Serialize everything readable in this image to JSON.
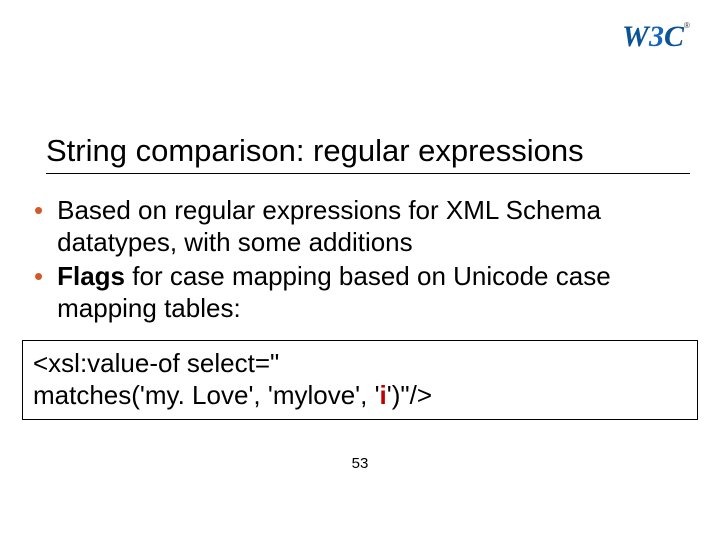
{
  "logo": {
    "text_main": "W3C",
    "color_w": "#0b5394",
    "color_3": "#0b5394",
    "color_c": "#0b5394",
    "reg_mark": "®"
  },
  "title": "String comparison: regular expressions",
  "bullets": [
    {
      "prefix": "",
      "bold": "",
      "text": "Based on regular expressions for XML Schema datatypes, with some additions"
    },
    {
      "prefix": "",
      "bold": "Flags",
      "text": " for case mapping based on Unicode case mapping tables:"
    }
  ],
  "code": {
    "line1": "<xsl:value-of select=\"",
    "line2_a": "matches('my. Love', 'mylove', '",
    "line2_hl": "i",
    "line2_b": "')\"/>"
  },
  "page_number": "53",
  "colors": {
    "bullet": "#d05a2a",
    "highlight": "#c00000",
    "text": "#000000",
    "background": "#ffffff"
  }
}
